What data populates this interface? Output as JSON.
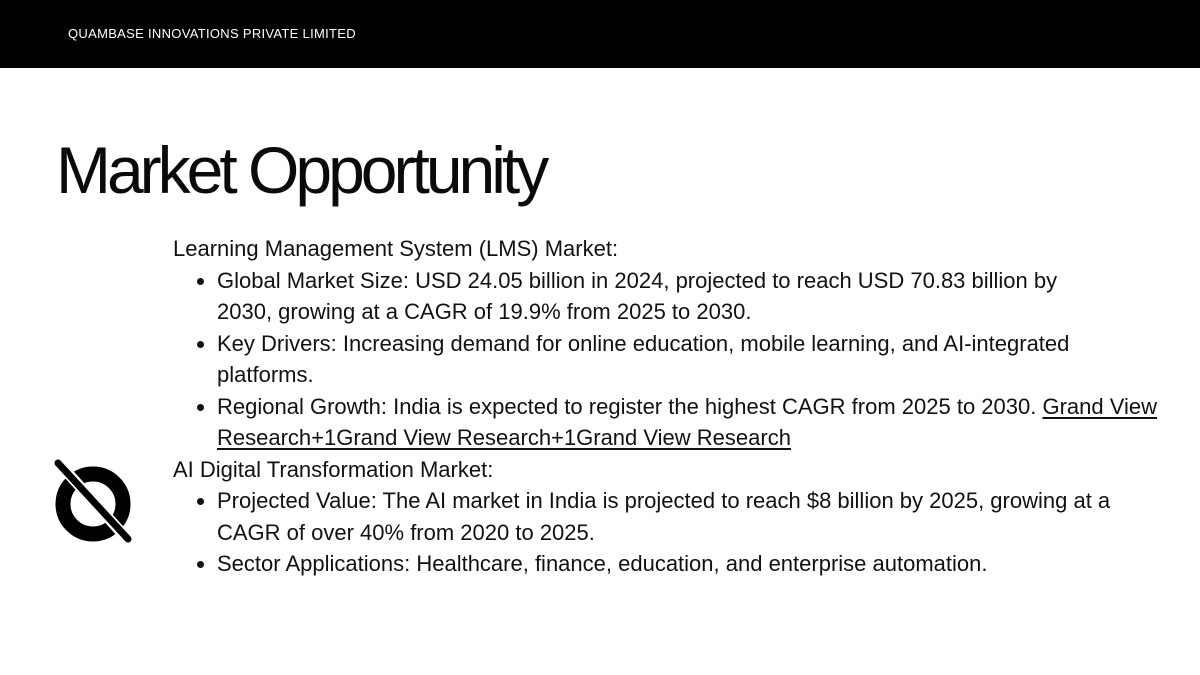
{
  "header": {
    "company_name": "QUAMBASE INNOVATIONS PRIVATE LIMITED"
  },
  "slide": {
    "title": "Market Opportunity"
  },
  "logo": {
    "icon": "circle-slash-logo-icon"
  },
  "sections": [
    {
      "heading": "Learning Management System (LMS) Market:",
      "bullets": [
        "Global Market Size: USD 24.05 billion in 2024, projected to reach USD 70.83 billion by 2030, growing at a CAGR of 19.9% from 2025 to 2030.",
        "Key Drivers: Increasing demand for online education, mobile learning, and AI-integrated platforms.",
        "Regional Growth: India is expected to register the highest CAGR from 2025 to 2030."
      ],
      "source_link": "Grand View Research+1Grand View Research+1Grand View Research"
    },
    {
      "heading": "AI Digital Transformation Market:",
      "bullets": [
        "Projected Value: The AI market in India is projected to reach $8 billion by 2025, growing at a CAGR of over 40% from 2020 to 2025.",
        "Sector Applications: Healthcare, finance, education, and enterprise automation."
      ]
    }
  ]
}
